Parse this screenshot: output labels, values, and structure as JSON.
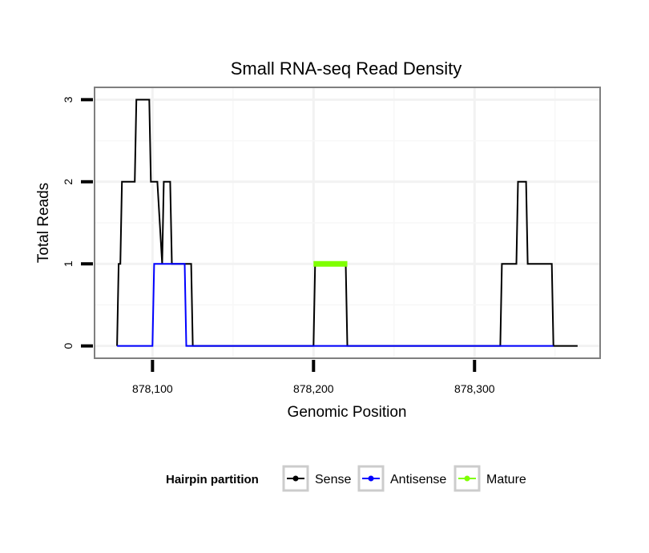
{
  "chart_data": {
    "type": "line",
    "title": "Small RNA-seq Read Density",
    "xlabel": "Genomic Position",
    "ylabel": "Total Reads",
    "xlim": [
      878064,
      878378
    ],
    "ylim": [
      -0.15,
      3.15
    ],
    "x_ticks": [
      878100,
      878200,
      878300
    ],
    "x_tick_labels": [
      "878,100",
      "878,200",
      "878,300"
    ],
    "y_ticks": [
      0,
      1,
      2,
      3
    ],
    "y_tick_labels": [
      "0",
      "1",
      "2",
      "3"
    ],
    "grid": true,
    "legend": {
      "title": "Hairpin partition",
      "position": "bottom",
      "entries": [
        "Sense",
        "Antisense",
        "Mature"
      ]
    },
    "series": [
      {
        "name": "Sense",
        "color": "#000000",
        "x": [
          878078,
          878079,
          878080,
          878081,
          878089,
          878090,
          878098,
          878099,
          878103,
          878106,
          878107,
          878111,
          878112,
          878124,
          878125,
          878200,
          878201,
          878220,
          878221,
          878316,
          878317,
          878326,
          878327,
          878332,
          878333,
          878348,
          878349,
          878364
        ],
        "y": [
          0,
          1,
          1,
          2,
          2,
          3,
          3,
          2,
          2,
          1,
          2,
          2,
          1,
          1,
          0,
          0,
          1,
          1,
          0,
          0,
          1,
          1,
          2,
          2,
          1,
          1,
          0,
          0
        ]
      },
      {
        "name": "Antisense",
        "color": "#0000ff",
        "x": [
          878078,
          878100,
          878101,
          878120,
          878121,
          878200,
          878221,
          878316,
          878349
        ],
        "y": [
          0,
          0,
          1,
          1,
          0,
          0,
          0,
          0,
          0
        ]
      },
      {
        "name": "Mature",
        "color": "#7fff00",
        "x": [
          878200,
          878221
        ],
        "y": [
          1,
          1
        ]
      }
    ]
  }
}
